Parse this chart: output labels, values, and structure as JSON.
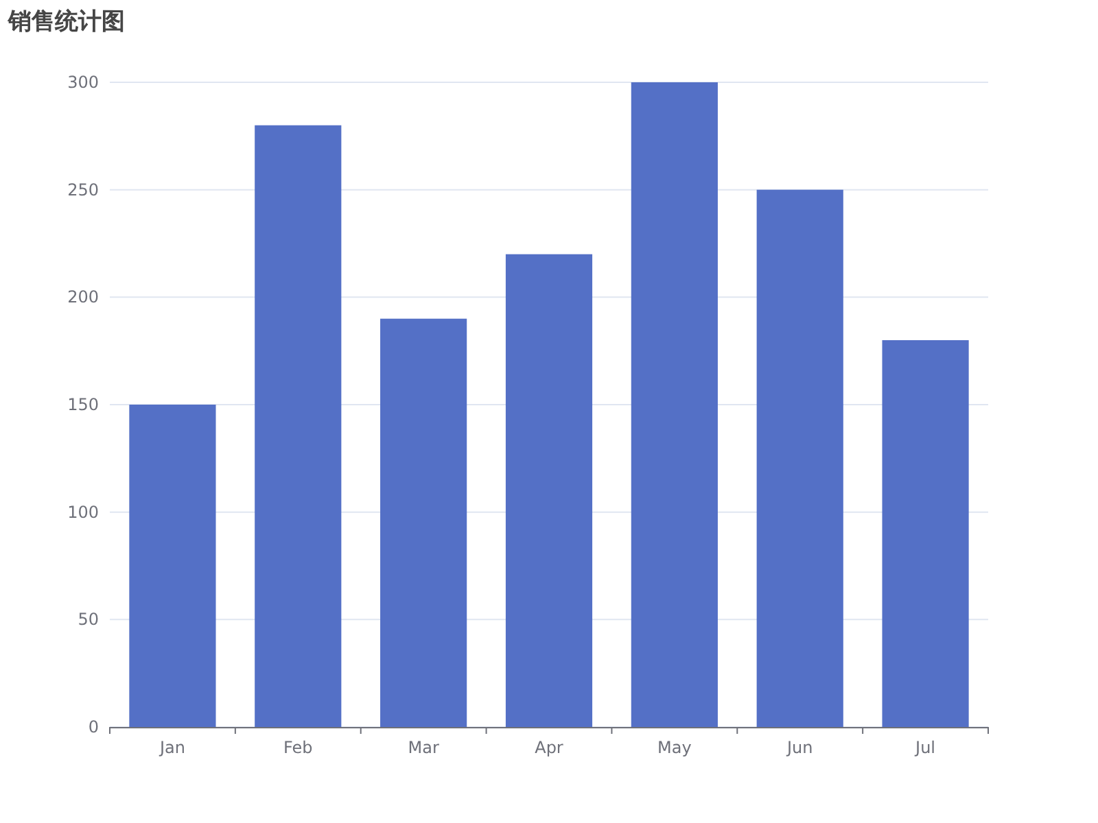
{
  "chart_data": {
    "type": "bar",
    "title": "销售统计图",
    "categories": [
      "Jan",
      "Feb",
      "Mar",
      "Apr",
      "May",
      "Jun",
      "Jul"
    ],
    "values": [
      150,
      280,
      190,
      220,
      300,
      250,
      180
    ],
    "color": "#5470c6",
    "ylim": [
      0,
      300
    ],
    "yticks": [
      0,
      50,
      100,
      150,
      200,
      250,
      300
    ],
    "grid": "y"
  }
}
